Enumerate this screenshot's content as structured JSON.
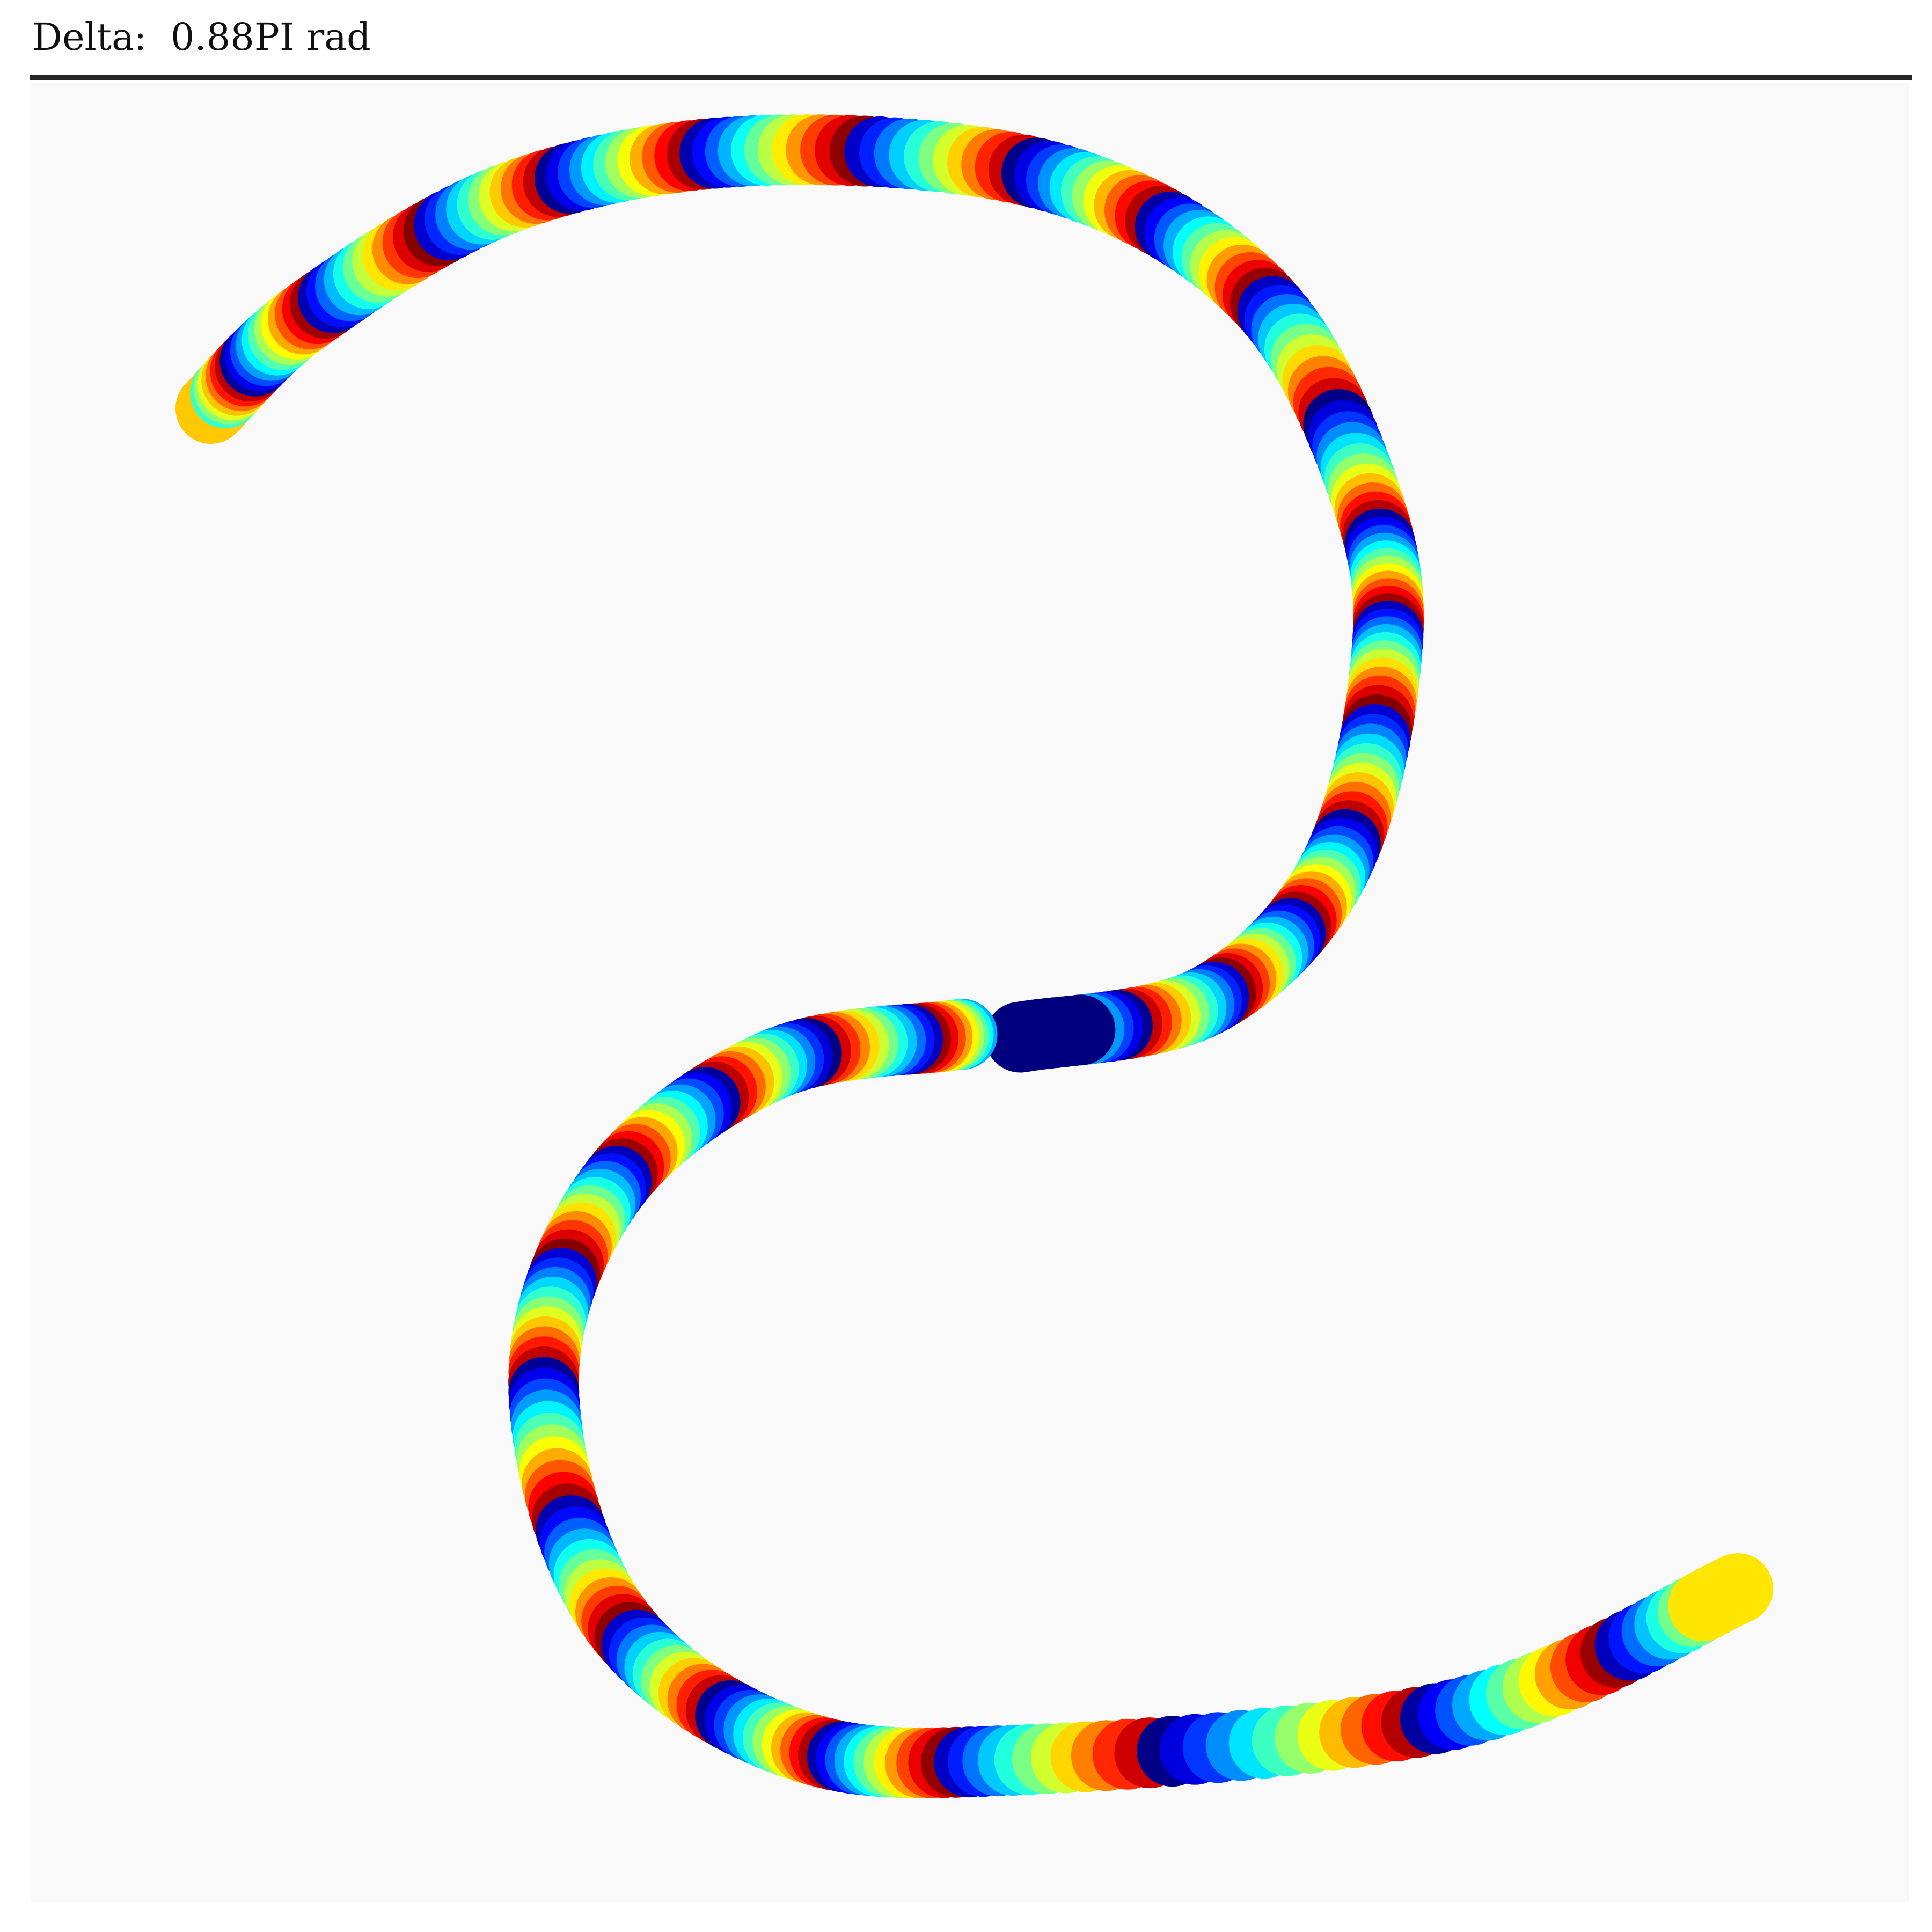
{
  "title": "Delta:  0.88PI rad",
  "chart_data": {
    "type": "scatter",
    "title": "Delta:  0.88PI rad",
    "xlabel": "",
    "ylabel": "",
    "axes_visible": false,
    "grid": false,
    "background_color": "#f9f9f9",
    "colormap": "jet",
    "parametric_curve": {
      "kind": "lissajous-like phase plot",
      "delta_pi": 0.88,
      "sample_count": 420,
      "marker": "circle",
      "color_cycles": 36,
      "start_color": "#ffc800",
      "end_color": "#ffe600",
      "center_gap_color": "#00007f"
    },
    "xlim": [
      -1.05,
      1.05
    ],
    "ylim": [
      -1.05,
      1.05
    ]
  }
}
